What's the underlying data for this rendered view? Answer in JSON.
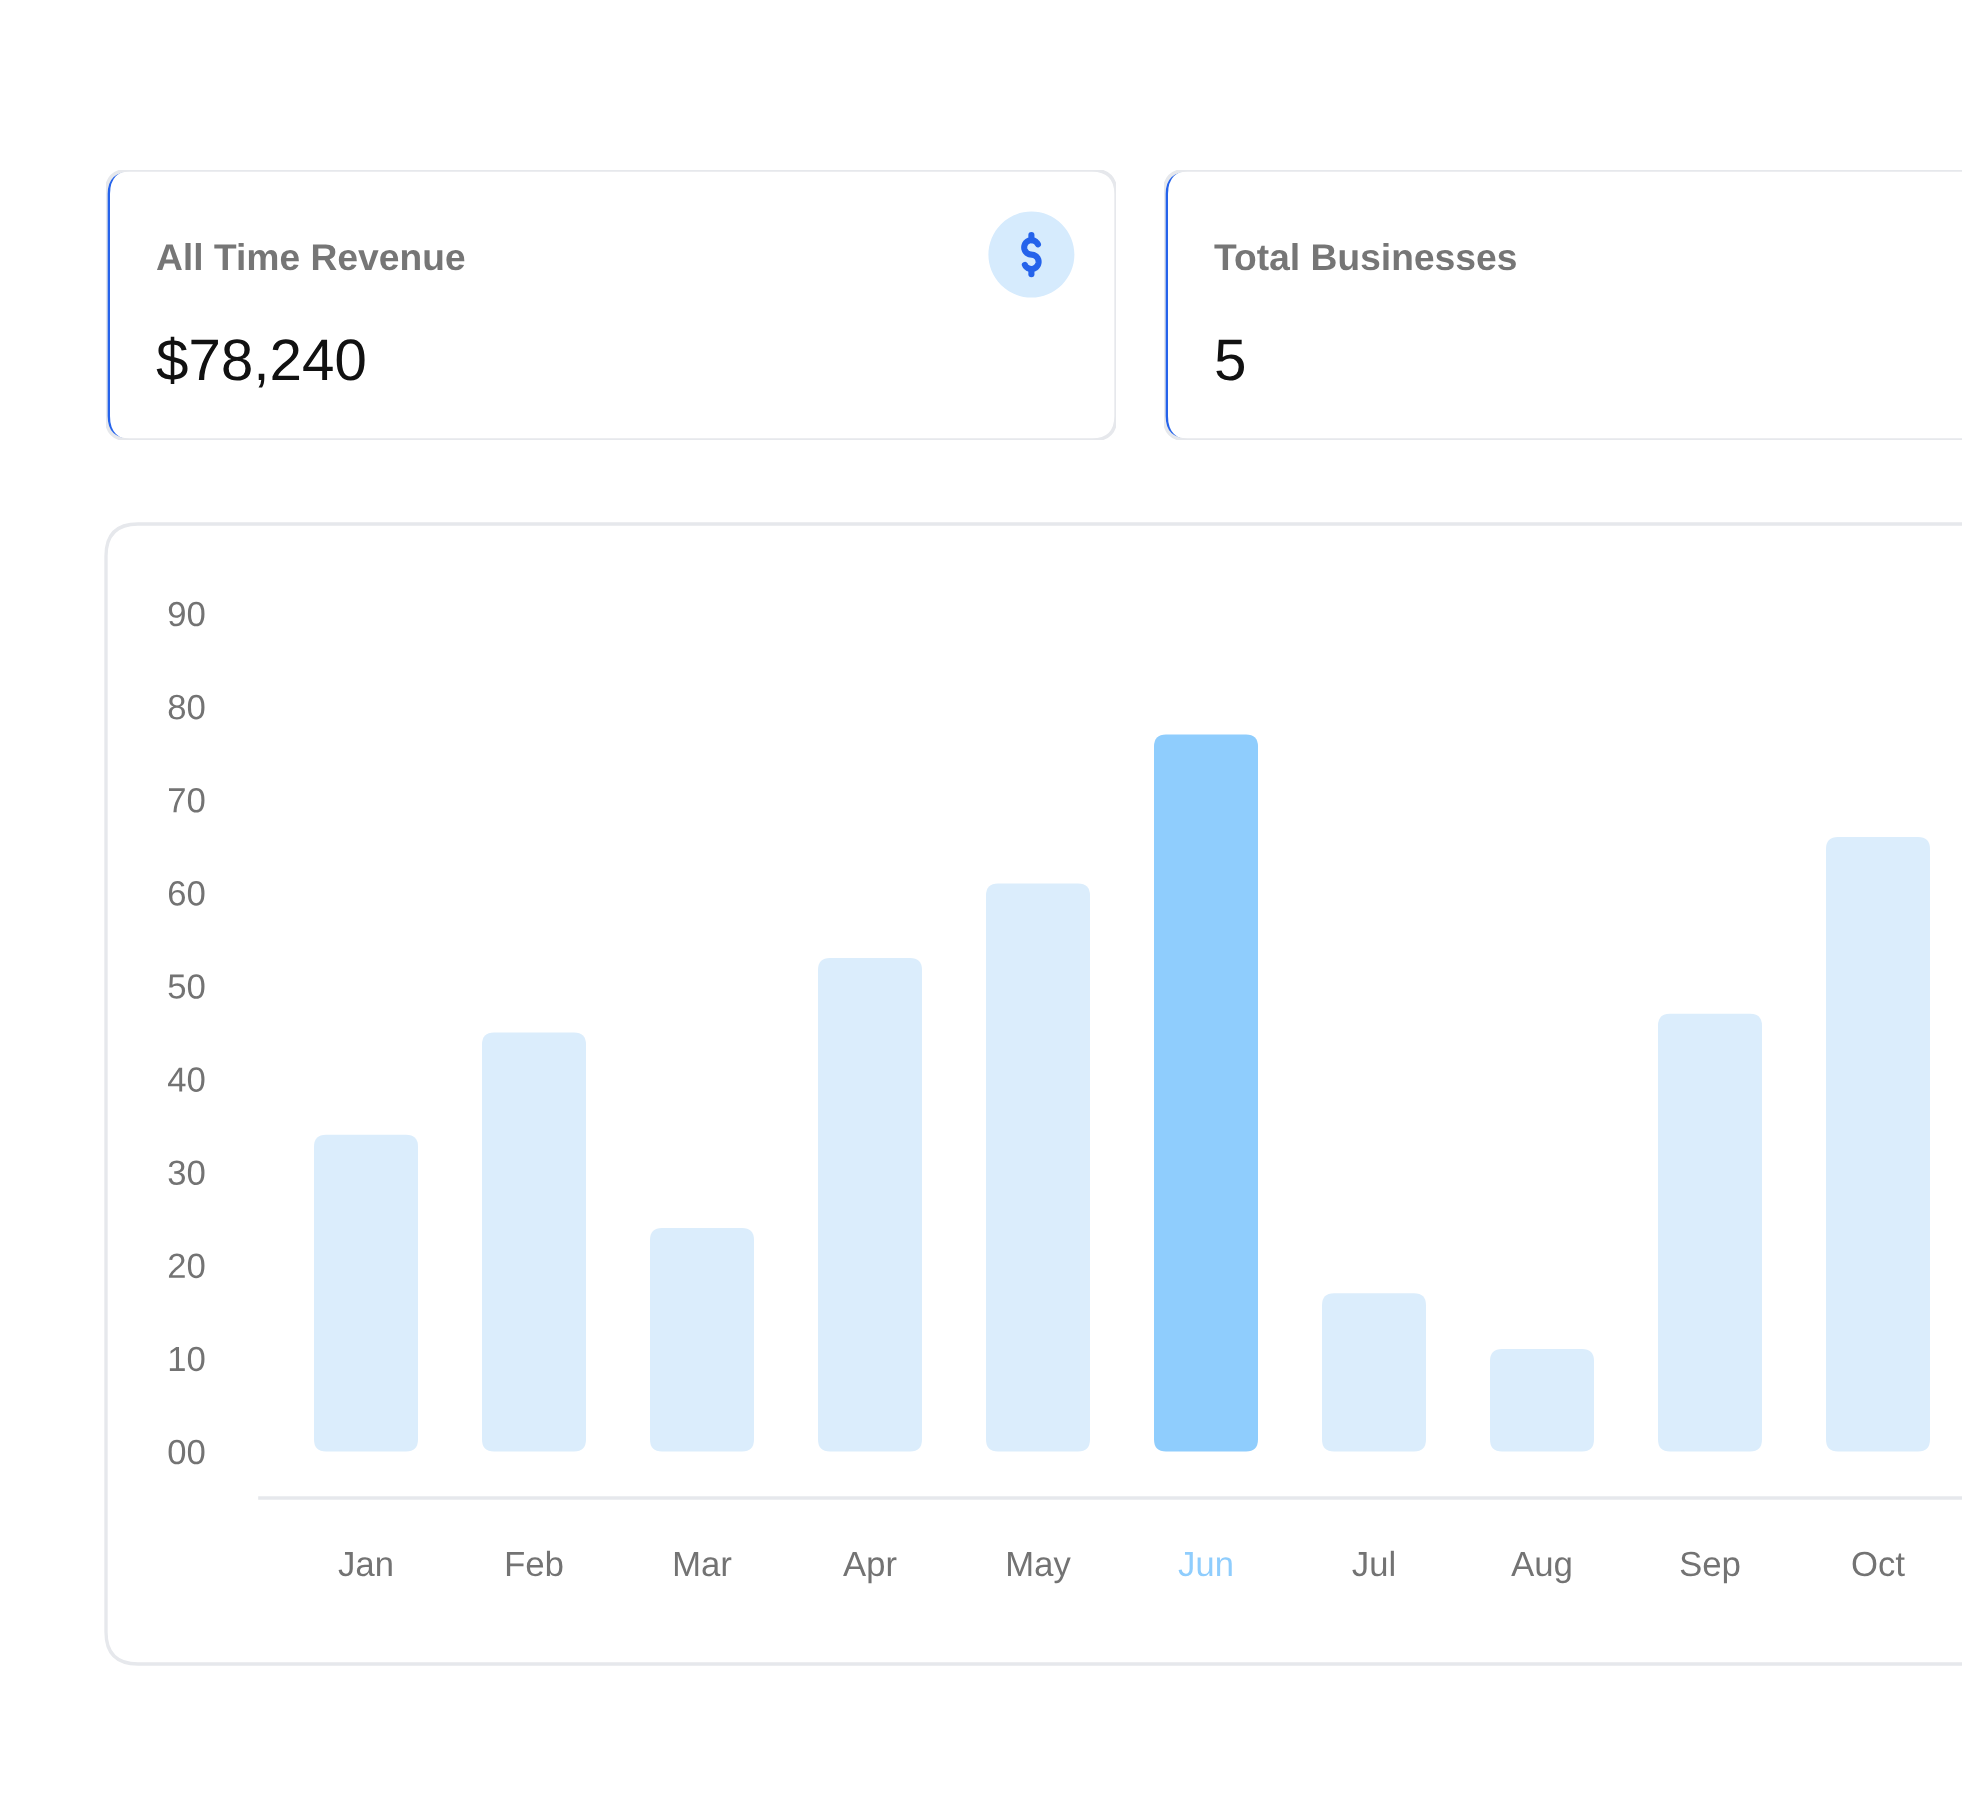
{
  "chart_data": [
    {
      "type": "other",
      "title": "All Time Revenue",
      "annotations": [
        "$78,240"
      ]
    },
    {
      "type": "other",
      "title": "Total Businesses",
      "annotations": [
        "5"
      ]
    },
    {
      "type": "bar",
      "categories": [
        "Jan",
        "Feb",
        "Mar",
        "Apr",
        "May",
        "Jun",
        "Jul",
        "Aug",
        "Sep",
        "Oct"
      ],
      "values": [
        34,
        45,
        24,
        53,
        61,
        77,
        17,
        11,
        47,
        66
      ],
      "colors": [
        "#dbedfc",
        "#dbedfc",
        "#dbedfc",
        "#dbedfc",
        "#dbedfc",
        "#8fcdfd",
        "#dbedfc",
        "#dbedfc",
        "#dbedfc",
        "#dbedfc"
      ],
      "ylim": [
        -5,
        90
      ],
      "yticks": [
        {
          "value": 0,
          "label": "00"
        },
        10,
        20,
        30,
        40,
        50,
        60,
        70,
        80,
        90
      ]
    }
  ]
}
